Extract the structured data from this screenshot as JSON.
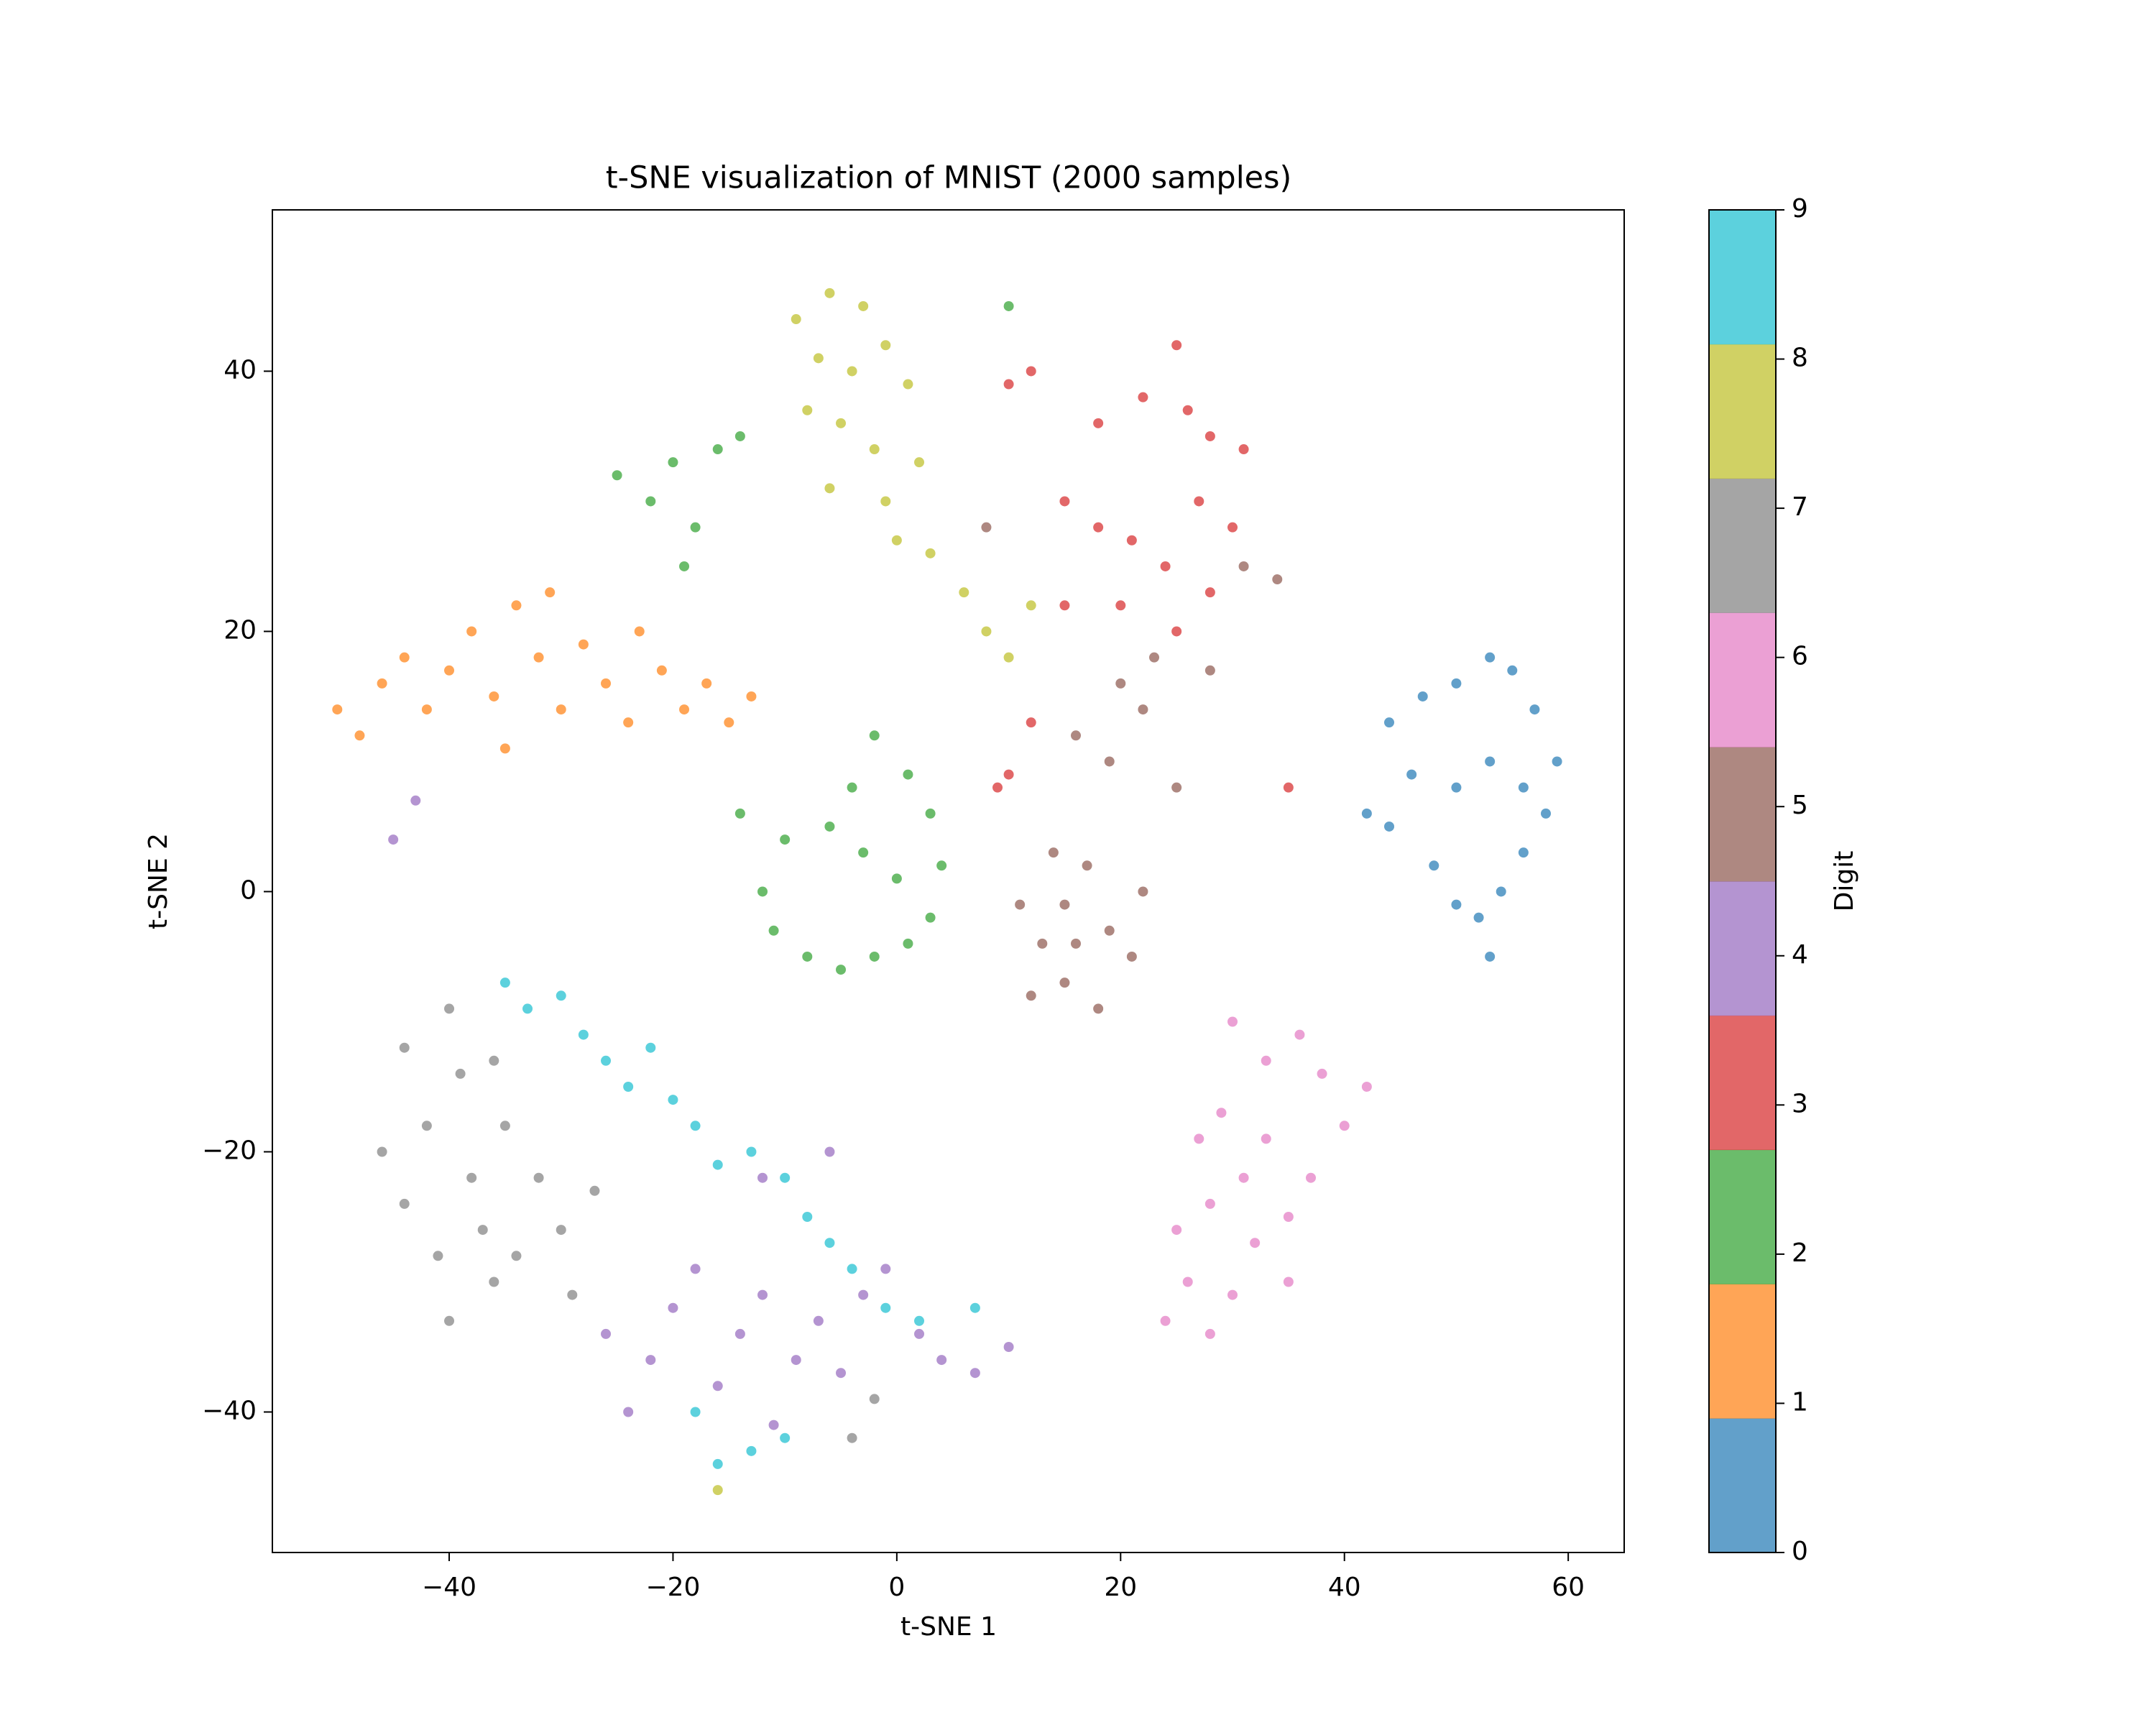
{
  "chart_data": {
    "type": "scatter",
    "title": "t-SNE visualization of MNIST (2000 samples)",
    "x_label": "t-SNE 1",
    "y_label": "t-SNE 2",
    "xlim": [
      -55.8,
      65
    ],
    "ylim": [
      -50.8,
      52.4
    ],
    "xticks": [
      {
        "value": -40,
        "label": "−40"
      },
      {
        "value": -20,
        "label": "−20"
      },
      0,
      20,
      40,
      60
    ],
    "yticks": [
      {
        "value": -40,
        "label": "−40"
      },
      {
        "value": -20,
        "label": "−20"
      },
      0,
      20,
      40
    ],
    "alpha": 0.7,
    "colorbar": {
      "label": "Digit",
      "lim": [
        0,
        9
      ],
      "ticks": [
        0,
        1,
        2,
        3,
        4,
        5,
        6,
        7,
        8,
        9
      ],
      "colors": [
        "#1f77b4",
        "#ff7f0e",
        "#2ca02c",
        "#d62728",
        "#9467bd",
        "#8c564b",
        "#e377c2",
        "#7f7f7f",
        "#bcbd22",
        "#17becf"
      ]
    },
    "x": [
      44,
      47,
      50,
      53,
      55,
      57,
      59,
      58,
      56,
      54,
      52,
      53,
      50,
      48,
      44,
      42,
      46,
      50,
      53,
      56,
      -50,
      -48,
      -46,
      -44,
      -42,
      -40,
      -38,
      -36,
      -35,
      -34,
      -32,
      -30,
      -28,
      -26,
      -24,
      -23,
      -21,
      -19,
      -17,
      -15,
      -13,
      -31,
      -10,
      -12,
      -11,
      -8,
      -5,
      -2,
      1,
      3,
      4,
      3,
      1,
      -2,
      -4,
      -6,
      -3,
      0,
      -14,
      -25,
      -22,
      -20,
      -18,
      -16,
      -14,
      -19,
      10,
      12,
      10,
      18,
      22,
      25,
      26,
      28,
      31,
      30,
      27,
      24,
      21,
      18,
      15,
      15,
      20,
      25,
      28,
      12,
      10,
      9,
      35,
      -26,
      -24,
      -22,
      -20,
      -18,
      -16,
      -14,
      -12,
      -11,
      -9,
      -7,
      -5,
      -3,
      -1,
      2,
      4,
      7,
      10,
      -6,
      -12,
      -45,
      -43,
      11,
      13,
      12,
      15,
      16,
      18,
      19,
      21,
      22,
      17,
      14,
      15,
      16,
      19,
      22,
      25,
      20,
      23,
      28,
      31,
      34,
      8,
      24,
      26,
      28,
      30,
      25,
      28,
      32,
      35,
      37,
      40,
      38,
      36,
      33,
      30,
      29,
      33,
      31,
      27,
      35,
      42,
      -46,
      -44,
      -44,
      -42,
      -41,
      -40,
      -39,
      -38,
      -37,
      -36,
      -35,
      -34,
      -32,
      -30,
      -27,
      -29,
      -36,
      -40,
      -2,
      -4,
      -9,
      -6,
      -3,
      -7,
      -4,
      -1,
      1,
      -8,
      -5,
      -2,
      2,
      -6,
      -1,
      0,
      3,
      6,
      8,
      10,
      12,
      -16,
      -35,
      -33,
      -30,
      -28,
      -26,
      -24,
      -22,
      -20,
      -18,
      -16,
      -13,
      -10,
      -8,
      -6,
      -4,
      -1,
      2,
      7,
      -18,
      -16,
      -13,
      -10
    ],
    "y": [
      13,
      15,
      16,
      18,
      17,
      14,
      10,
      6,
      3,
      0,
      -2,
      -5,
      -1,
      2,
      5,
      6,
      9,
      8,
      10,
      8,
      14,
      12,
      16,
      18,
      14,
      17,
      20,
      15,
      11,
      22,
      18,
      14,
      19,
      16,
      13,
      20,
      17,
      14,
      16,
      13,
      15,
      23,
      4,
      0,
      -3,
      -5,
      -6,
      -5,
      -4,
      -2,
      2,
      6,
      9,
      12,
      8,
      5,
      3,
      1,
      6,
      32,
      30,
      33,
      28,
      34,
      35,
      25,
      45,
      40,
      39,
      36,
      38,
      42,
      37,
      35,
      34,
      28,
      30,
      25,
      27,
      28,
      30,
      22,
      22,
      20,
      23,
      13,
      9,
      8,
      8,
      -34,
      -40,
      -36,
      -32,
      -29,
      -38,
      -34,
      -31,
      -41,
      -36,
      -33,
      -37,
      -31,
      -29,
      -34,
      -36,
      -37,
      -35,
      -20,
      -22,
      4,
      7,
      -1,
      -4,
      -8,
      -7,
      -4,
      -9,
      -3,
      -5,
      0,
      2,
      3,
      -1,
      12,
      10,
      14,
      8,
      16,
      18,
      17,
      25,
      24,
      28,
      -33,
      -30,
      -34,
      -31,
      -26,
      -24,
      -27,
      -25,
      -22,
      -18,
      -14,
      -11,
      -13,
      -10,
      -17,
      -19,
      -22,
      -19,
      -30,
      -15,
      -20,
      -24,
      -12,
      -18,
      -28,
      -33,
      -14,
      -22,
      -26,
      -30,
      -18,
      -28,
      -22,
      -26,
      -23,
      -31,
      -13,
      -9,
      -39,
      -42,
      44,
      46,
      45,
      41,
      40,
      42,
      39,
      37,
      36,
      34,
      33,
      31,
      30,
      27,
      26,
      23,
      20,
      18,
      22,
      -46,
      -7,
      -9,
      -8,
      -11,
      -13,
      -15,
      -12,
      -16,
      -18,
      -21,
      -20,
      -22,
      -25,
      -27,
      -29,
      -32,
      -33,
      -32,
      -40,
      -44,
      -43,
      -42
    ],
    "c": [
      0,
      0,
      0,
      0,
      0,
      0,
      0,
      0,
      0,
      0,
      0,
      0,
      0,
      0,
      0,
      0,
      0,
      0,
      0,
      0,
      1,
      1,
      1,
      1,
      1,
      1,
      1,
      1,
      1,
      1,
      1,
      1,
      1,
      1,
      1,
      1,
      1,
      1,
      1,
      1,
      1,
      1,
      2,
      2,
      2,
      2,
      2,
      2,
      2,
      2,
      2,
      2,
      2,
      2,
      2,
      2,
      2,
      2,
      2,
      2,
      2,
      2,
      2,
      2,
      2,
      2,
      2,
      3,
      3,
      3,
      3,
      3,
      3,
      3,
      3,
      3,
      3,
      3,
      3,
      3,
      3,
      3,
      3,
      3,
      3,
      3,
      3,
      3,
      3,
      4,
      4,
      4,
      4,
      4,
      4,
      4,
      4,
      4,
      4,
      4,
      4,
      4,
      4,
      4,
      4,
      4,
      4,
      4,
      4,
      4,
      4,
      5,
      5,
      5,
      5,
      5,
      5,
      5,
      5,
      5,
      5,
      5,
      5,
      5,
      5,
      5,
      5,
      5,
      5,
      5,
      5,
      5,
      5,
      6,
      6,
      6,
      6,
      6,
      6,
      6,
      6,
      6,
      6,
      6,
      6,
      6,
      6,
      6,
      6,
      6,
      6,
      6,
      6,
      7,
      7,
      7,
      7,
      7,
      7,
      7,
      7,
      7,
      7,
      7,
      7,
      7,
      7,
      7,
      7,
      7,
      7,
      7,
      7,
      8,
      8,
      8,
      8,
      8,
      8,
      8,
      8,
      8,
      8,
      8,
      8,
      8,
      8,
      8,
      8,
      8,
      8,
      8,
      8,
      9,
      9,
      9,
      9,
      9,
      9,
      9,
      9,
      9,
      9,
      9,
      9,
      9,
      9,
      9,
      9,
      9,
      9,
      9,
      9,
      9,
      9
    ]
  }
}
